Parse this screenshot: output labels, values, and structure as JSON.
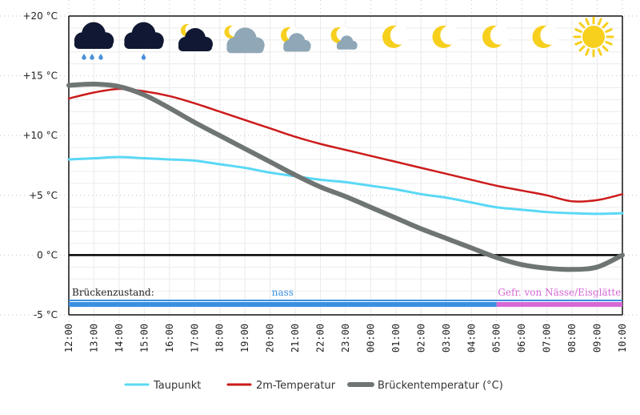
{
  "chart_data": {
    "type": "line",
    "y_unit": "°C",
    "ylim": [
      -5,
      20
    ],
    "y_ticks": [
      {
        "value": 20,
        "label": "+20 °C"
      },
      {
        "value": 15,
        "label": "+15 °C"
      },
      {
        "value": 10,
        "label": "+10 °C"
      },
      {
        "value": 5,
        "label": "+5 °C"
      },
      {
        "value": 0,
        "label": "0 °C"
      },
      {
        "value": -5,
        "label": "-5 °C"
      }
    ],
    "categories": [
      "12:00",
      "13:00",
      "14:00",
      "15:00",
      "16:00",
      "17:00",
      "18:00",
      "19:00",
      "20:00",
      "21:00",
      "22:00",
      "23:00",
      "00:00",
      "01:00",
      "02:00",
      "03:00",
      "04:00",
      "05:00",
      "06:00",
      "07:00",
      "08:00",
      "09:00",
      "10:00"
    ],
    "series": [
      {
        "name": "Taupunkt",
        "color": "#5ad8f5",
        "width": 3,
        "values": [
          8.0,
          8.1,
          8.2,
          8.1,
          8.0,
          7.9,
          7.6,
          7.3,
          6.9,
          6.6,
          6.3,
          6.1,
          5.8,
          5.5,
          5.1,
          4.8,
          4.4,
          4.0,
          3.8,
          3.6,
          3.5,
          3.45,
          3.5
        ]
      },
      {
        "name": "2m-Temperatur",
        "color": "#cc1b1b",
        "width": 2.5,
        "values": [
          13.1,
          13.6,
          13.9,
          13.7,
          13.3,
          12.7,
          12.0,
          11.3,
          10.6,
          9.9,
          9.3,
          8.8,
          8.3,
          7.8,
          7.3,
          6.8,
          6.3,
          5.8,
          5.4,
          5.0,
          4.5,
          4.6,
          5.1
        ]
      },
      {
        "name": "Brückentemperatur (°C)",
        "color": "#6f7573",
        "width": 6,
        "values": [
          14.2,
          14.3,
          14.1,
          13.4,
          12.3,
          11.1,
          10.0,
          8.9,
          7.8,
          6.7,
          5.7,
          4.9,
          4.0,
          3.1,
          2.2,
          1.4,
          0.6,
          -0.2,
          -0.8,
          -1.1,
          -1.2,
          -1.0,
          0.0
        ]
      }
    ],
    "zero_line": 0,
    "weather_icons": [
      "rain-cloud-icon",
      "rain-cloud-icon",
      "night-cloudy-icon",
      "night-cloudy-icon",
      "night-partly-cloudy-icon",
      "night-partly-cloudy-icon",
      "moon-icon",
      "moon-icon",
      "moon-icon",
      "moon-icon",
      "sun-icon"
    ],
    "bridge_status": {
      "label": "Brückenzustand:",
      "segments": [
        {
          "text": "nass",
          "start": "12:00",
          "end": "05:00",
          "color": "#3a8fe0",
          "text_color": "#3a8fe0"
        },
        {
          "text": "Gefr. von Nässe/Eisglätte",
          "start": "05:00",
          "end": "10:00",
          "color": "#d668d6",
          "text_color": "#d668d6"
        }
      ]
    },
    "legend_position": "bottom"
  },
  "legend": [
    {
      "label": "Taupunkt",
      "color": "#5ad8f5"
    },
    {
      "label": "2m-Temperatur",
      "color": "#cc1b1b"
    },
    {
      "label": "Brückentemperatur (°C)",
      "color": "#6f7573"
    }
  ]
}
